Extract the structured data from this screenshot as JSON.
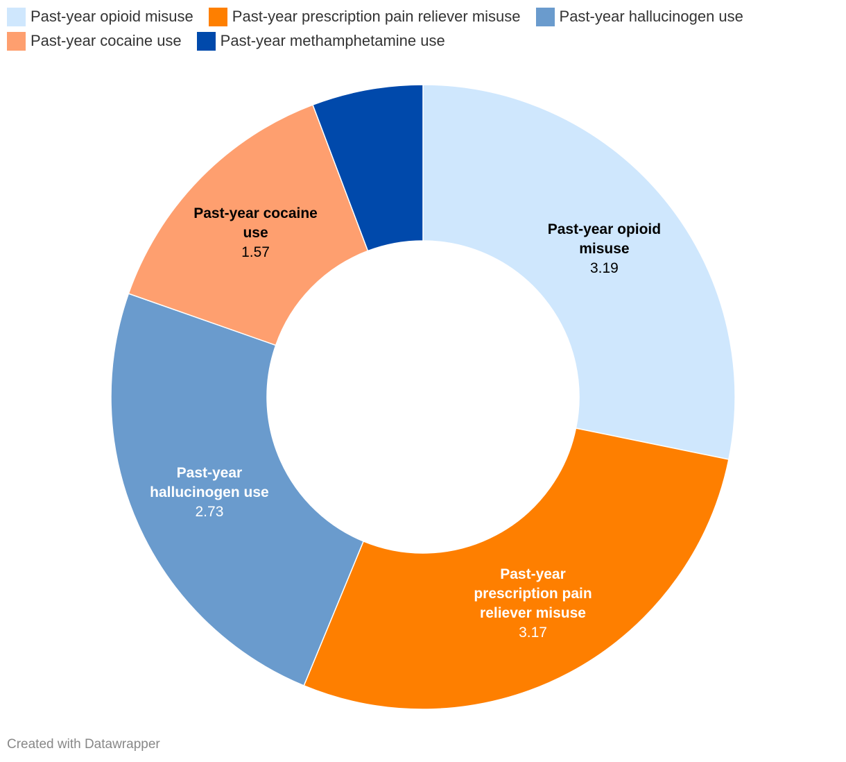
{
  "chart_data": {
    "type": "donut",
    "categories": [
      "Past-year opioid misuse",
      "Past-year prescription pain reliever misuse",
      "Past-year hallucinogen use",
      "Past-year cocaine use",
      "Past-year methamphetamine use"
    ],
    "values": [
      3.19,
      3.17,
      2.73,
      1.57,
      0.65
    ],
    "colors": [
      "#cfe7fd",
      "#fe7f00",
      "#6a9bcd",
      "#fe9f6f",
      "#0049ab"
    ],
    "label_colors": [
      "#000000",
      "#ffffff",
      "#ffffff",
      "#000000",
      "#ffffff"
    ],
    "credit": "Created with Datawrapper"
  }
}
